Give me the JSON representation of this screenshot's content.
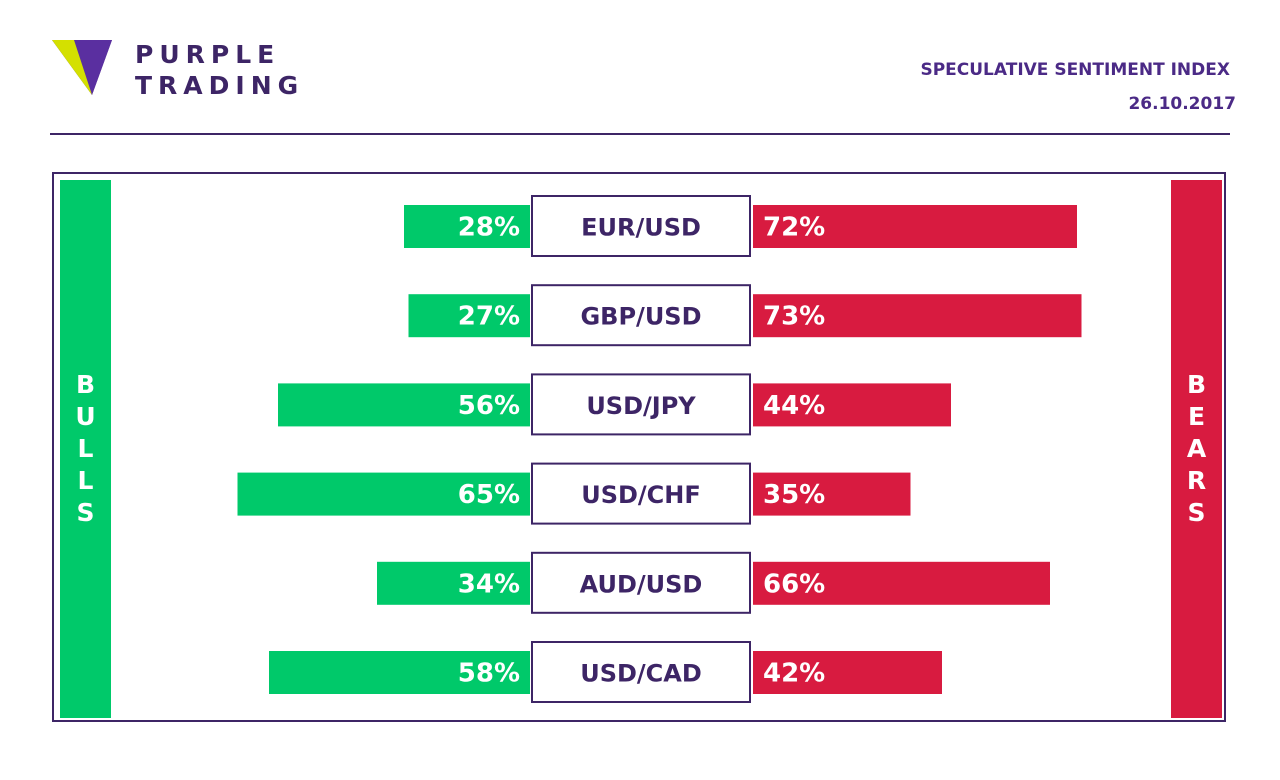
{
  "brand": {
    "line1": "PURPLE",
    "line2": "TRADING"
  },
  "header": {
    "title": "SPECULATIVE SENTIMENT INDEX",
    "date": "26.10.2017"
  },
  "colors": {
    "bulls": "#00c96a",
    "bears": "#d81b40",
    "brand_purple": "#3d2566",
    "title_purple": "#4b2a86"
  },
  "chart_data": {
    "type": "bar",
    "subtype": "diverging-stacked-horizontal",
    "categories": [
      "EUR/USD",
      "GBP/USD",
      "USD/JPY",
      "USD/CHF",
      "AUD/USD",
      "USD/CAD"
    ],
    "series": [
      {
        "name": "BULLS",
        "values": [
          28,
          27,
          56,
          65,
          34,
          58
        ]
      },
      {
        "name": "BEARS",
        "values": [
          72,
          73,
          44,
          35,
          66,
          42
        ]
      }
    ],
    "value_labels": {
      "BULLS": [
        "28%",
        "27%",
        "56%",
        "65%",
        "34%",
        "58%"
      ],
      "BEARS": [
        "72%",
        "73%",
        "44%",
        "35%",
        "66%",
        "42%"
      ]
    },
    "side_labels": {
      "left": "BULLS",
      "right": "BEARS"
    },
    "unit": "%",
    "grid": false
  }
}
